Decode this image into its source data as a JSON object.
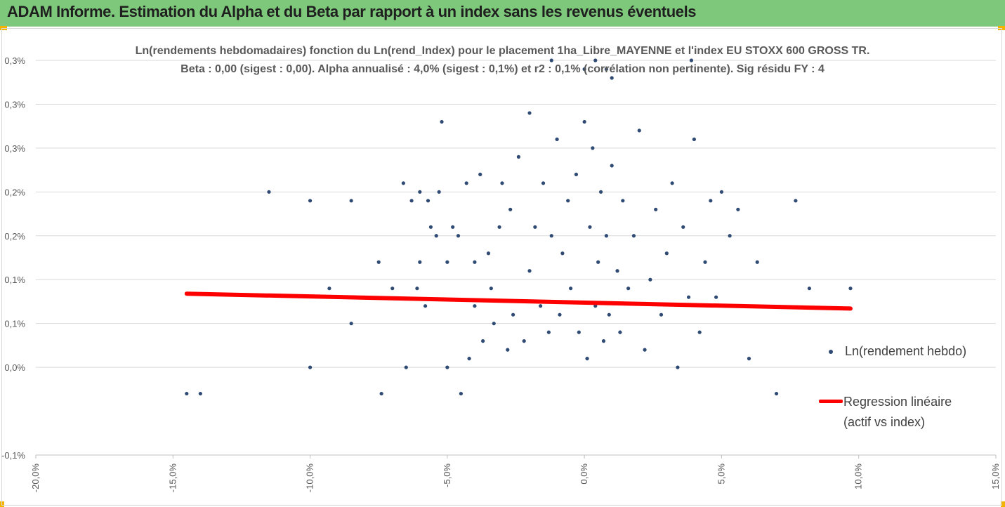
{
  "banner": {
    "title": "ADAM Informe. Estimation du Alpha et du Beta par rapport à un index sans les revenus éventuels"
  },
  "colors": {
    "banner": "#7ec87b",
    "points": "#2f4a73",
    "regression": "#ff0000",
    "grid": "#d9d9d9",
    "accent_corner": "#f2b400"
  },
  "chart_data": {
    "type": "scatter",
    "title": "Ln(rendements hebdomadaires) fonction du Ln(rend_Index) pour le placement 1ha_Libre_MAYENNE  et l'index EU STOXX 600 GROSS TR.",
    "subtitle": "Beta : 0,00 (sigest : 0,00). Alpha annualisé : 4,0% (sigest : 0,1%) et r2 : 0,1% (corrélation non pertinente). Sig résidu FY : 4",
    "xlabel": "",
    "ylabel": "",
    "xlim": [
      -0.2,
      0.15
    ],
    "ylim": [
      -0.001,
      0.0035
    ],
    "x_ticks": [
      -0.2,
      -0.15,
      -0.1,
      -0.05,
      0.0,
      0.05,
      0.1,
      0.15
    ],
    "x_tick_labels": [
      "-20,0%",
      "-15,0%",
      "-10,0%",
      "-5,0%",
      "0,0%",
      "5,0%",
      "10,0%",
      "15,0%"
    ],
    "y_ticks": [
      -0.001,
      0.0,
      0.0005,
      0.001,
      0.0015,
      0.002,
      0.0025,
      0.003,
      0.0035
    ],
    "y_tick_labels": [
      "-0,1%",
      "0,0%",
      "0,1%",
      "0,1%",
      "0,2%",
      "0,2%",
      "0,3%",
      "0,3%",
      "0,3%"
    ],
    "grid": "horizontal",
    "legend_position": "right",
    "series": [
      {
        "name": "Ln(rendement hebdo)",
        "kind": "scatter",
        "x": [
          -0.145,
          -0.14,
          -0.115,
          -0.1,
          -0.1,
          -0.093,
          -0.085,
          -0.085,
          -0.075,
          -0.074,
          -0.07,
          -0.066,
          -0.065,
          -0.063,
          -0.061,
          -0.06,
          -0.06,
          -0.058,
          -0.057,
          -0.056,
          -0.054,
          -0.053,
          -0.052,
          -0.05,
          -0.05,
          -0.048,
          -0.046,
          -0.045,
          -0.043,
          -0.042,
          -0.04,
          -0.04,
          -0.038,
          -0.037,
          -0.035,
          -0.034,
          -0.033,
          -0.031,
          -0.03,
          -0.028,
          -0.027,
          -0.026,
          -0.024,
          -0.022,
          -0.02,
          -0.02,
          -0.018,
          -0.016,
          -0.015,
          -0.013,
          -0.012,
          -0.01,
          -0.009,
          -0.008,
          -0.006,
          -0.005,
          -0.003,
          -0.002,
          0.0,
          0.001,
          0.002,
          0.003,
          0.004,
          0.005,
          0.006,
          0.007,
          0.008,
          0.009,
          0.01,
          0.012,
          0.013,
          0.014,
          0.016,
          0.018,
          0.02,
          0.022,
          0.024,
          0.026,
          0.028,
          0.03,
          0.032,
          0.034,
          0.036,
          0.038,
          0.04,
          0.042,
          0.044,
          0.046,
          0.048,
          0.05,
          0.053,
          0.056,
          0.06,
          0.063,
          0.07,
          0.077,
          0.082,
          0.097,
          -0.012,
          0.0,
          0.01,
          0.004,
          0.008,
          0.039
        ],
        "y": [
          -0.0003,
          -0.0003,
          0.002,
          0.0019,
          0.0,
          0.0009,
          0.0019,
          0.0005,
          0.0012,
          -0.0003,
          0.0009,
          0.0021,
          0.0,
          0.0019,
          0.0009,
          0.0012,
          0.002,
          0.0007,
          0.0019,
          0.0016,
          0.0015,
          0.002,
          0.0028,
          0.0012,
          0.0,
          0.0016,
          0.0015,
          -0.0003,
          0.0021,
          0.0001,
          0.0007,
          0.0012,
          0.0022,
          0.0003,
          0.0013,
          0.0009,
          0.0005,
          0.0016,
          0.0021,
          0.0002,
          0.0018,
          0.0006,
          0.0024,
          0.0003,
          0.0029,
          0.0011,
          0.0016,
          0.0007,
          0.0021,
          0.0004,
          0.0015,
          0.0026,
          0.0006,
          0.0013,
          0.0019,
          0.0009,
          0.0022,
          0.0004,
          0.0028,
          0.0001,
          0.0016,
          0.0025,
          0.0007,
          0.0012,
          0.002,
          0.0003,
          0.0015,
          0.0006,
          0.0023,
          0.0011,
          0.0004,
          0.0019,
          0.0009,
          0.0015,
          0.0027,
          0.0002,
          0.001,
          0.0018,
          0.0006,
          0.0013,
          0.0021,
          0.0,
          0.0016,
          0.0008,
          0.0026,
          0.0004,
          0.0012,
          0.0019,
          0.0008,
          0.002,
          0.0015,
          0.0018,
          0.0001,
          0.0012,
          -0.0003,
          0.0019,
          0.0009,
          0.0009,
          0.0035,
          0.0034,
          0.0033,
          0.0035,
          0.0034,
          0.0035
        ]
      },
      {
        "name": "Regression linéaire (actif vs index)",
        "kind": "line",
        "x": [
          -0.145,
          0.097
        ],
        "y": [
          0.00084,
          0.00067
        ]
      }
    ]
  },
  "legend": {
    "items": [
      {
        "label": "Ln(rendement hebdo)"
      },
      {
        "label_line1": "Regression linéaire",
        "label_line2": "(actif vs index)"
      }
    ]
  }
}
